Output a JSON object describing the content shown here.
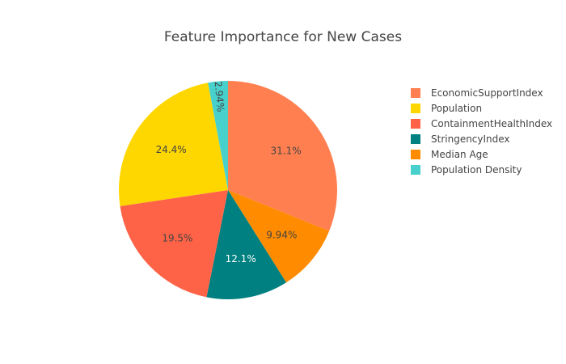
{
  "chart_data": {
    "type": "pie",
    "title": "Feature Importance for New Cases",
    "slices": [
      {
        "label": "EconomicSupportIndex",
        "value": 31.1,
        "text": "31.1%",
        "color": "#FF7F50",
        "text_color": "#444444"
      },
      {
        "label": "Median Age",
        "value": 9.94,
        "text": "9.94%",
        "color": "#FF8C00",
        "text_color": "#444444"
      },
      {
        "label": "StringencyIndex",
        "value": 12.1,
        "text": "12.1%",
        "color": "#008080",
        "text_color": "#ffffff"
      },
      {
        "label": "ContainmentHealthIndex",
        "value": 19.5,
        "text": "19.5%",
        "color": "#FF6347",
        "text_color": "#444444"
      },
      {
        "label": "Population",
        "value": 24.4,
        "text": "24.4%",
        "color": "#FFD700",
        "text_color": "#444444"
      },
      {
        "label": "Population Density",
        "value": 2.94,
        "text": "2.94%",
        "color": "#48D1CC",
        "text_color": "#444444"
      }
    ],
    "legend": [
      {
        "label": "EconomicSupportIndex",
        "color": "#FF7F50"
      },
      {
        "label": "Population",
        "color": "#FFD700"
      },
      {
        "label": "ContainmentHealthIndex",
        "color": "#FF6347"
      },
      {
        "label": "StringencyIndex",
        "color": "#008080"
      },
      {
        "label": "Median Age",
        "color": "#FF8C00"
      },
      {
        "label": "Population Density",
        "color": "#48D1CC"
      }
    ],
    "legend_position": "right"
  }
}
